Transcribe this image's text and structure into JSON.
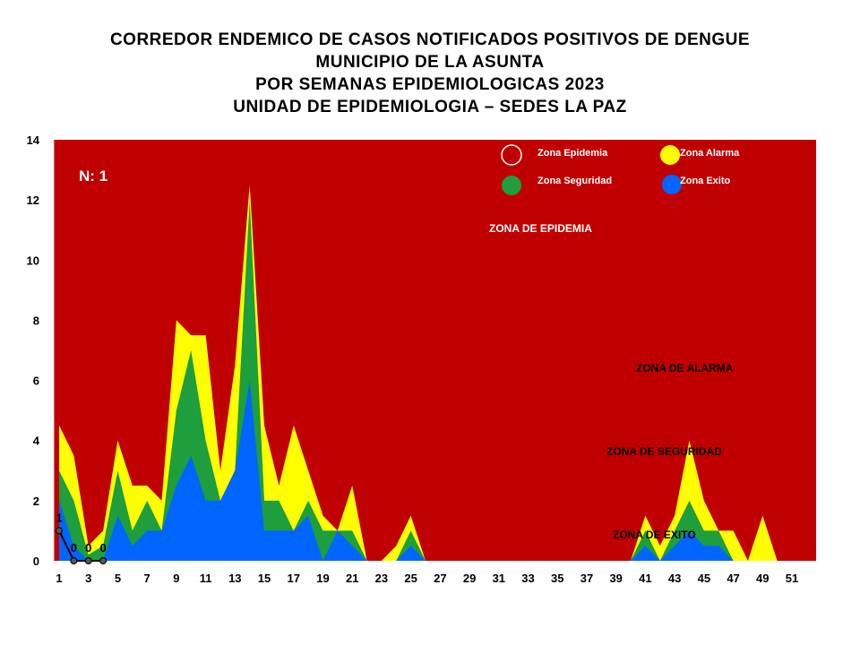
{
  "title": {
    "line1": "CORREDOR ENDEMICO DE CASOS NOTIFICADOS POSITIVOS DE DENGUE",
    "line2": "MUNICIPIO DE LA ASUNTA",
    "line3": "POR SEMANAS EPIDEMIOLOGICAS 2023",
    "line4": "UNIDAD DE EPIDEMIOLOGIA – SEDES LA PAZ"
  },
  "n_label": "N: 1",
  "legend": {
    "epidemia": "Zona Epidemia",
    "alarma": "Zona Alarma",
    "seguridad": "Zona Seguridad",
    "exito": "Zona Exito"
  },
  "zone_labels": {
    "epidemia": "ZONA DE EPIDEMIA",
    "alarma": "ZONA DE ALARMA",
    "seguridad": "ZONA DE  SEGURIDAD",
    "exito": "ZONA DE  EXITO"
  },
  "colors": {
    "epidemia": "#c00000",
    "alarma": "#ffff00",
    "seguridad": "#1e9e3c",
    "exito": "#0066ff",
    "cases": "#000000"
  },
  "chart_data": {
    "type": "area",
    "ylim": [
      0,
      14
    ],
    "xlim": [
      1,
      52
    ],
    "y_ticks": [
      "0",
      "2",
      "4",
      "6",
      "8",
      "10",
      "12",
      "14"
    ],
    "x_ticks": [
      "1",
      "3",
      "5",
      "7",
      "9",
      "11",
      "13",
      "15",
      "17",
      "19",
      "21",
      "23",
      "25",
      "27",
      "29",
      "31",
      "33",
      "35",
      "37",
      "39",
      "41",
      "43",
      "45",
      "47",
      "49",
      "51"
    ],
    "x": [
      1,
      2,
      3,
      4,
      5,
      6,
      7,
      8,
      9,
      10,
      11,
      12,
      13,
      14,
      15,
      16,
      17,
      18,
      19,
      20,
      21,
      22,
      23,
      24,
      25,
      26,
      27,
      28,
      29,
      30,
      31,
      32,
      33,
      34,
      35,
      36,
      37,
      38,
      39,
      40,
      41,
      42,
      43,
      44,
      45,
      46,
      47,
      48,
      49,
      50,
      51,
      52
    ],
    "series": [
      {
        "name": "Zona Alarma",
        "values": [
          4.5,
          3.5,
          0.5,
          1,
          4,
          2.5,
          2.5,
          2,
          8,
          7.5,
          7.5,
          3,
          6.5,
          12.5,
          4.5,
          2.5,
          4.5,
          3,
          1.5,
          1,
          2.5,
          0,
          0,
          0.5,
          1.5,
          0,
          0,
          0,
          0,
          0,
          0,
          0,
          0,
          0,
          0,
          0,
          0,
          0,
          0,
          0,
          1.5,
          0.5,
          1.5,
          4,
          2,
          1,
          1,
          0,
          1.5,
          0,
          0,
          0
        ]
      },
      {
        "name": "Zona Seguridad",
        "values": [
          3,
          2,
          0.2,
          0.5,
          3,
          1,
          2,
          1,
          5,
          7,
          4,
          2,
          3,
          12,
          2,
          2,
          1,
          2,
          1,
          1,
          1,
          0,
          0,
          0,
          1,
          0,
          0,
          0,
          0,
          0,
          0,
          0,
          0,
          0,
          0,
          0,
          0,
          0,
          0,
          0,
          1,
          0,
          1,
          2,
          1,
          1,
          0,
          0,
          0,
          0,
          0,
          0
        ]
      },
      {
        "name": "Zona Exito",
        "values": [
          2,
          0.5,
          0,
          0,
          1.5,
          0.5,
          1,
          1,
          2.5,
          3.5,
          2,
          2,
          3,
          6,
          1,
          1,
          1,
          1.5,
          0,
          1,
          0.5,
          0,
          0,
          0,
          0.5,
          0,
          0,
          0,
          0,
          0,
          0,
          0,
          0,
          0,
          0,
          0,
          0,
          0,
          0,
          0,
          0.5,
          0,
          0.5,
          1,
          0.5,
          0.5,
          0,
          0,
          0,
          0,
          0,
          0
        ]
      }
    ],
    "cases": {
      "x": [
        1,
        2,
        3,
        4
      ],
      "values": [
        1,
        0,
        0,
        0
      ],
      "labels": [
        "1",
        "0",
        "0",
        "0"
      ]
    }
  }
}
